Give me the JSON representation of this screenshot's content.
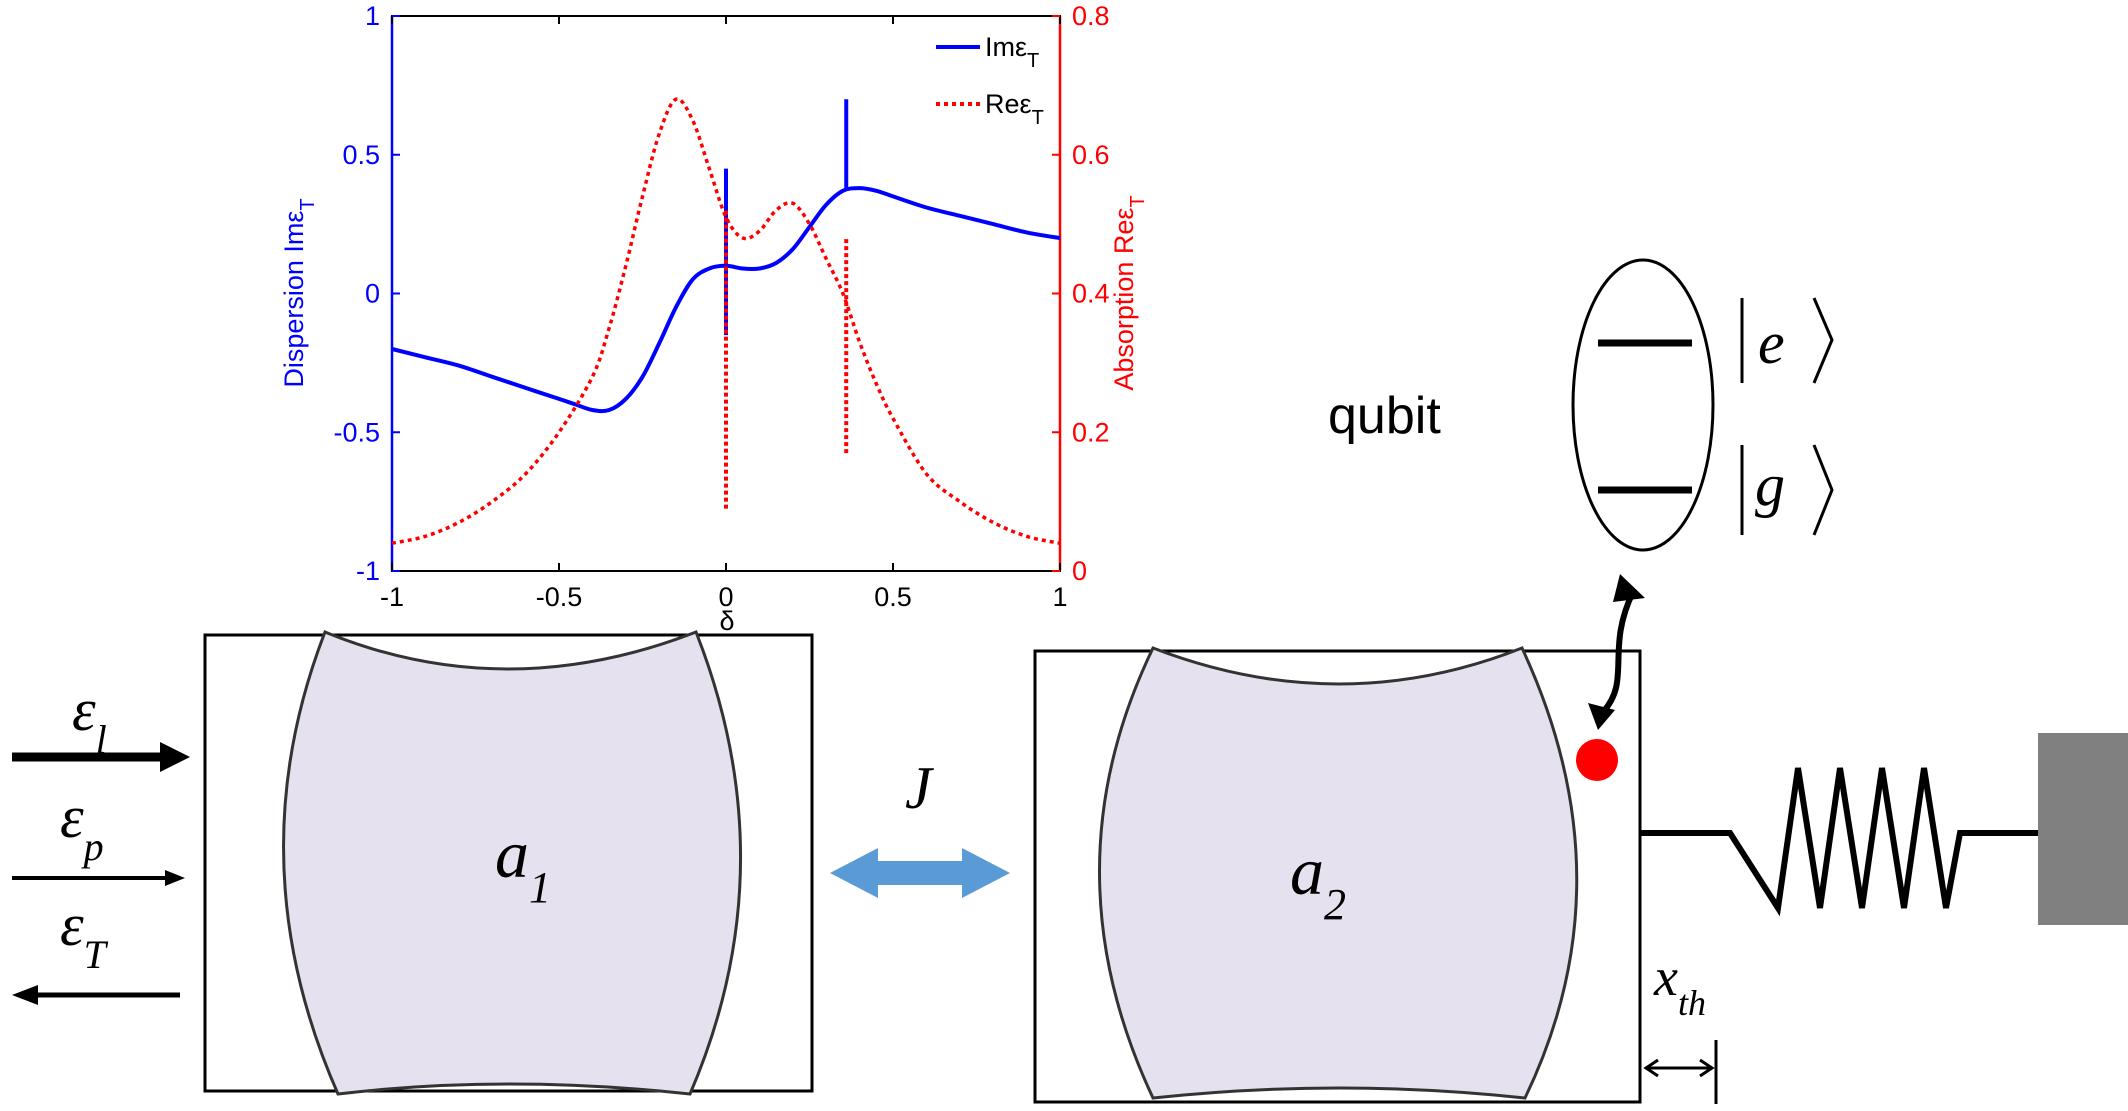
{
  "chart_data": {
    "type": "line",
    "xlabel": "δ",
    "xlim": [
      -1,
      1
    ],
    "xticks": [
      -1,
      -0.5,
      0,
      0.5,
      1
    ],
    "ylabel_left": "Dispersion Imε",
    "ylabel_left_sub": "T",
    "ylim_left": [
      -1,
      1
    ],
    "yticks_left": [
      -1,
      -0.5,
      0,
      0.5,
      1
    ],
    "ylabel_right": "Absorption Reε",
    "ylabel_right_sub": "T",
    "ylim_right": [
      0,
      0.8
    ],
    "yticks_right": [
      0,
      0.2,
      0.4,
      0.6,
      0.8
    ],
    "legend_position": "top-right",
    "series": [
      {
        "name": "Imε",
        "name_sub": "T",
        "axis": "left",
        "color": "#0000ff",
        "style": "solid",
        "x": [
          -1,
          -0.9,
          -0.8,
          -0.7,
          -0.6,
          -0.5,
          -0.45,
          -0.4,
          -0.35,
          -0.3,
          -0.25,
          -0.2,
          -0.15,
          -0.1,
          -0.05,
          0,
          0.05,
          0.1,
          0.15,
          0.2,
          0.25,
          0.3,
          0.35,
          0.4,
          0.45,
          0.5,
          0.6,
          0.7,
          0.8,
          0.9,
          1
        ],
        "values": [
          -0.2,
          -0.23,
          -0.26,
          -0.3,
          -0.34,
          -0.38,
          -0.4,
          -0.42,
          -0.42,
          -0.38,
          -0.3,
          -0.18,
          -0.05,
          0.05,
          0.09,
          0.1,
          0.09,
          0.09,
          0.11,
          0.16,
          0.24,
          0.32,
          0.37,
          0.38,
          0.37,
          0.35,
          0.31,
          0.28,
          0.25,
          0.22,
          0.2
        ],
        "spikes": [
          {
            "x": 0,
            "from": -0.15,
            "to": 0.45
          },
          {
            "x": 0.36,
            "from": 0.37,
            "to": 0.7
          }
        ]
      },
      {
        "name": "Reε",
        "name_sub": "T",
        "axis": "right",
        "color": "#ff0000",
        "style": "dotted",
        "x": [
          -1,
          -0.9,
          -0.8,
          -0.7,
          -0.6,
          -0.5,
          -0.4,
          -0.35,
          -0.3,
          -0.25,
          -0.2,
          -0.15,
          -0.1,
          -0.05,
          0,
          0.05,
          0.1,
          0.15,
          0.2,
          0.25,
          0.3,
          0.35,
          0.4,
          0.45,
          0.5,
          0.6,
          0.7,
          0.8,
          0.9,
          1
        ],
        "values": [
          0.04,
          0.05,
          0.07,
          0.1,
          0.14,
          0.2,
          0.28,
          0.35,
          0.44,
          0.54,
          0.63,
          0.68,
          0.65,
          0.58,
          0.51,
          0.48,
          0.49,
          0.52,
          0.53,
          0.5,
          0.45,
          0.4,
          0.33,
          0.27,
          0.22,
          0.14,
          0.1,
          0.07,
          0.05,
          0.04
        ],
        "spikes": [
          {
            "x": 0,
            "from": 0.09,
            "to": 0.52
          },
          {
            "x": 0.36,
            "from": 0.17,
            "to": 0.48
          }
        ]
      }
    ]
  },
  "diagram": {
    "qubit_label": "qubit",
    "state_excited": "e",
    "state_ground": "g",
    "field_in_label": "ε",
    "field_in_sub": "l",
    "field_probe_label": "ε",
    "field_probe_sub": "p",
    "field_out_label": "ε",
    "field_out_sub": "T",
    "cavity1_label": "a",
    "cavity1_sub": "1",
    "cavity2_label": "a",
    "cavity2_sub": "2",
    "coupling_label": "J",
    "displacement_label": "x",
    "displacement_sub": "th",
    "colors": {
      "cavity_fill": "#e6e1ee",
      "coupling_arrow": "#5b9bd5",
      "qubit_dot": "#ff0000",
      "wall": "#808080"
    }
  }
}
